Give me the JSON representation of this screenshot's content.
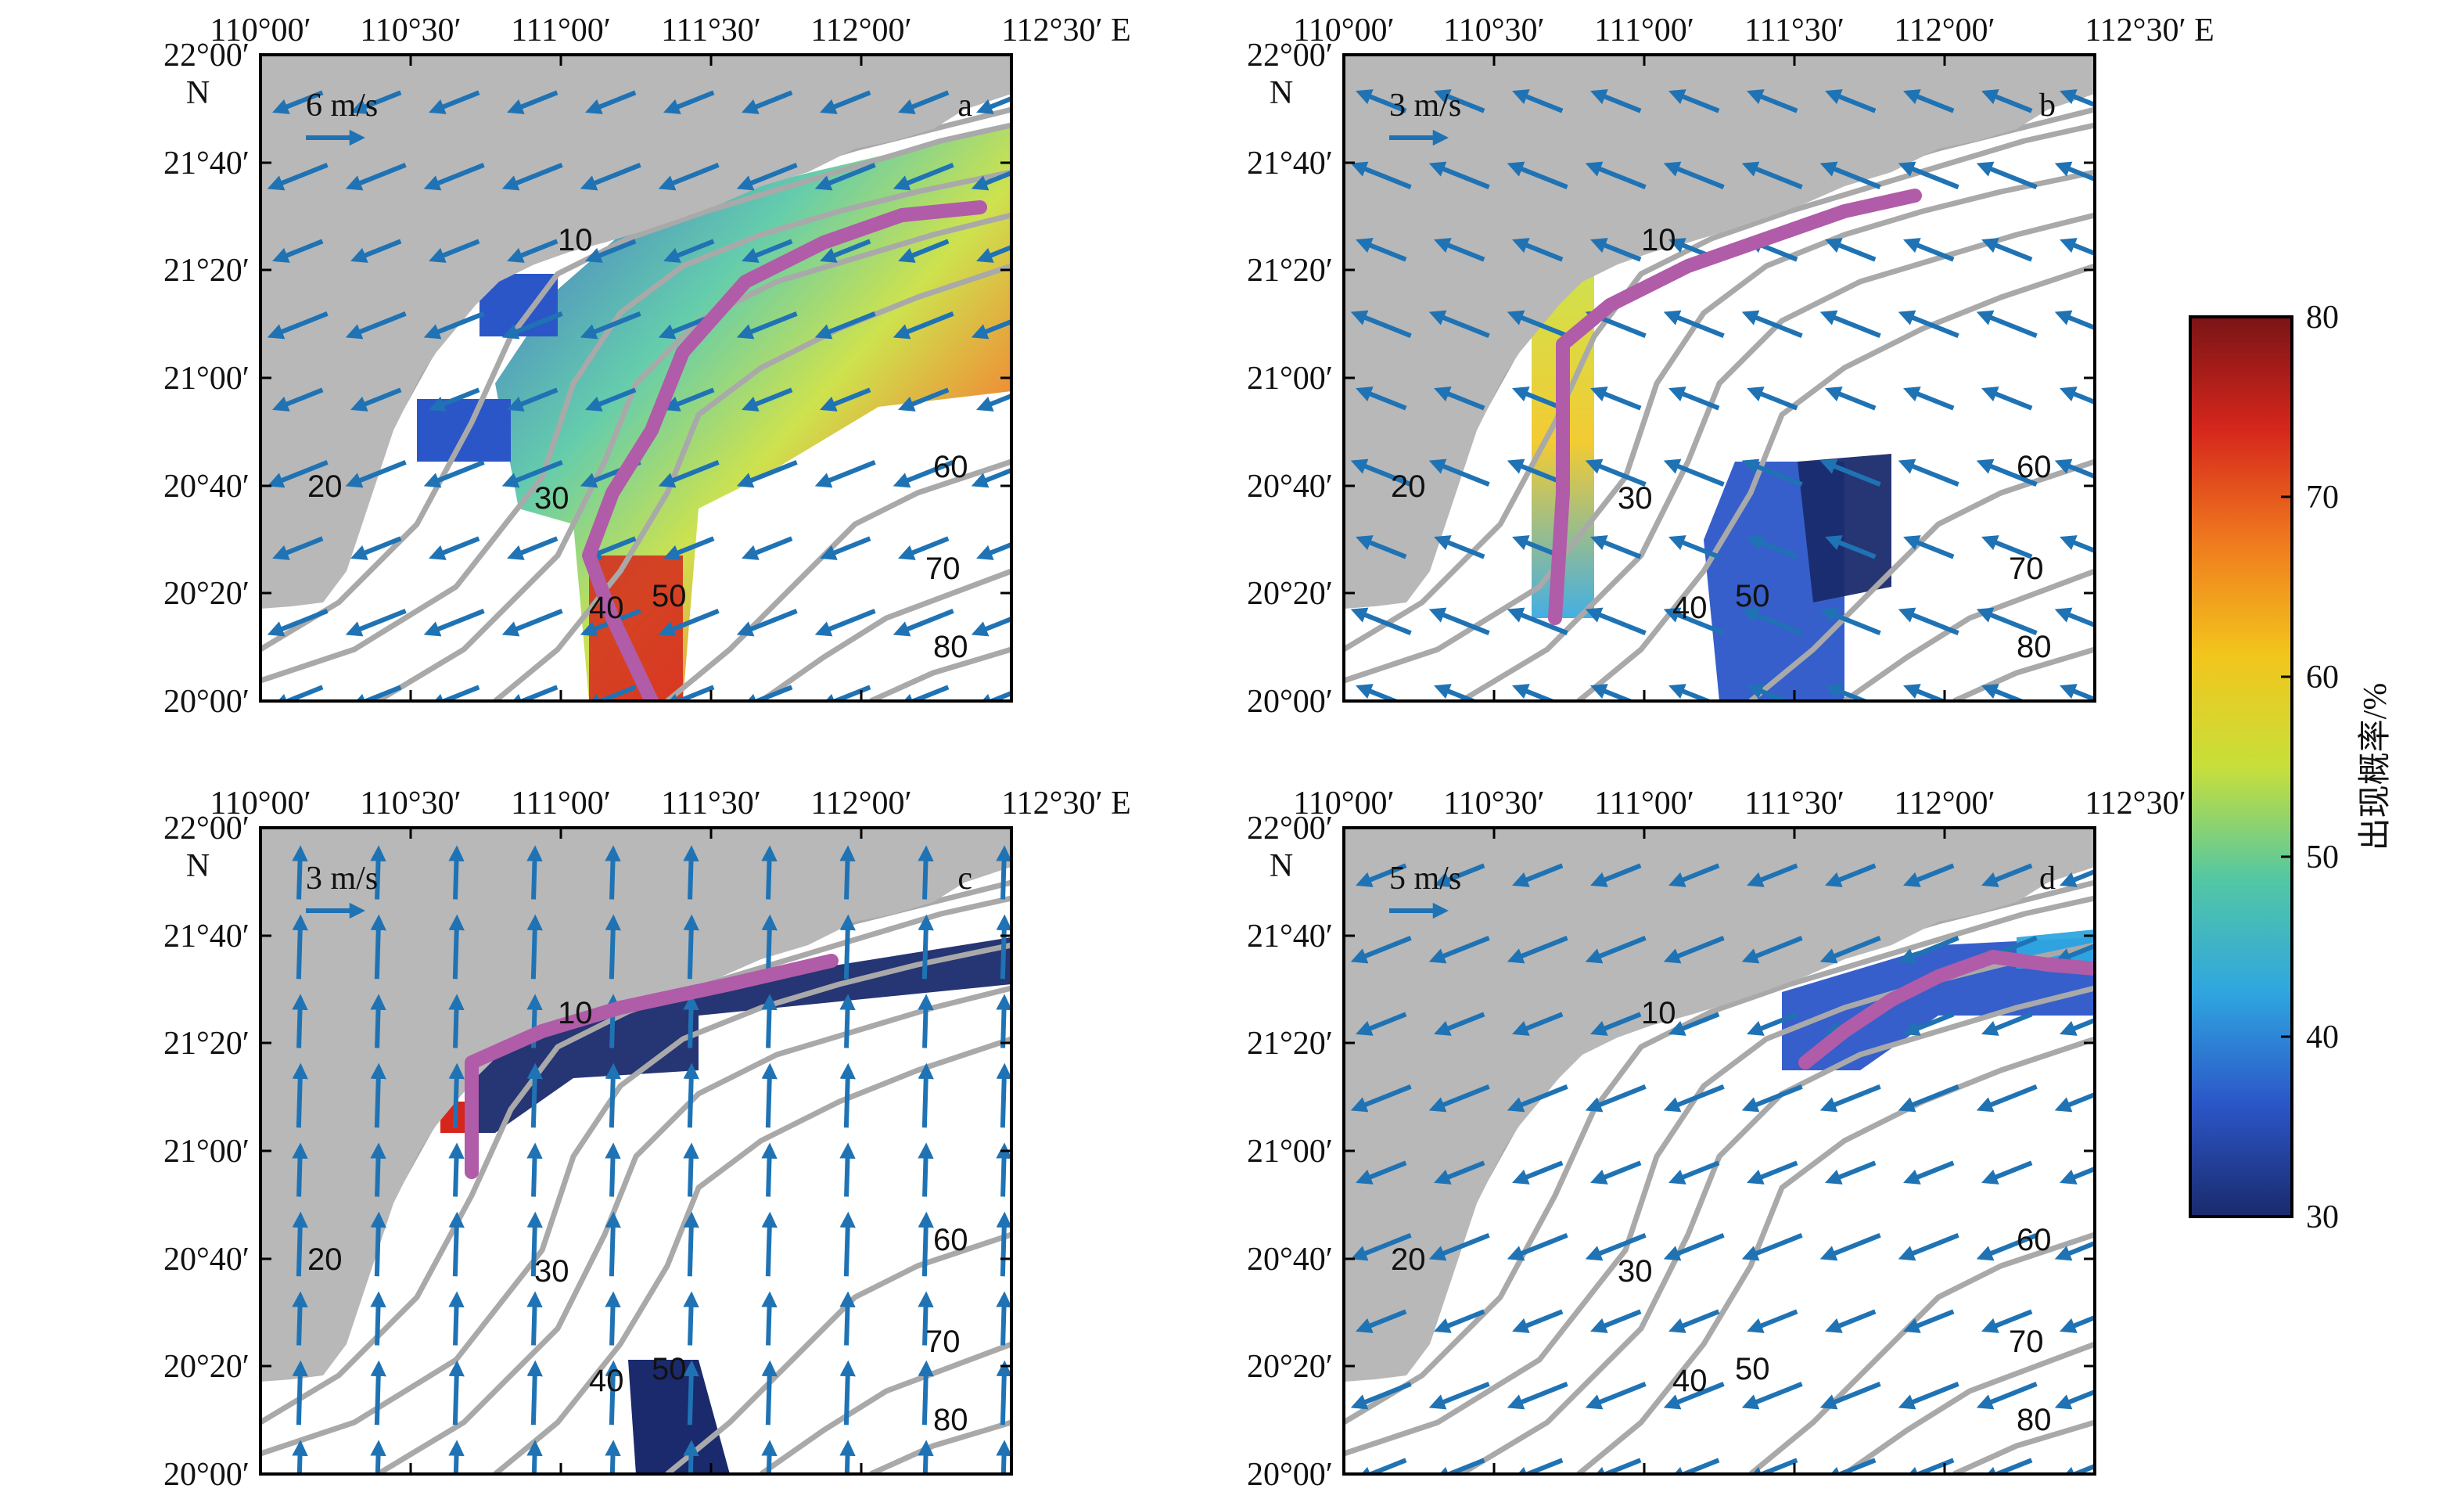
{
  "colors": {
    "land": "#b8b8b8",
    "sea": "#ffffff",
    "contour": "#a9a9a9",
    "arrow": "#1f73b4",
    "front_line": "#b05ca8"
  },
  "axes": {
    "lon_ticks": [
      "110°00′",
      "110°30′",
      "111°00′",
      "111°30′",
      "112°00′",
      "112°30′ E"
    ],
    "lat_ticks": [
      "22°00′",
      "21°40′",
      "21°20′",
      "21°00′",
      "20°40′",
      "20°20′",
      "20°00′"
    ],
    "north_label": "N"
  },
  "contour_labels": [
    "10",
    "20",
    "30",
    "40",
    "50",
    "60",
    "70",
    "80"
  ],
  "panels": [
    {
      "id": "a",
      "scale_label": "6 m/s",
      "wind_direction": "southwest"
    },
    {
      "id": "b",
      "scale_label": "3 m/s",
      "wind_direction": "northwest"
    },
    {
      "id": "c",
      "scale_label": "3 m/s",
      "wind_direction": "north"
    },
    {
      "id": "d",
      "scale_label": "5 m/s",
      "wind_direction": "southwest"
    }
  ],
  "colorbar": {
    "title": "出现概率/%",
    "min": 30,
    "max": 80,
    "ticks": [
      "30",
      "40",
      "50",
      "60",
      "70",
      "80"
    ],
    "colors": [
      "#1a2a6c",
      "#2b56c8",
      "#2fa6e0",
      "#53c7a3",
      "#c8df3a",
      "#f2c51c",
      "#f07a1e",
      "#d6261c",
      "#7a1416"
    ]
  }
}
